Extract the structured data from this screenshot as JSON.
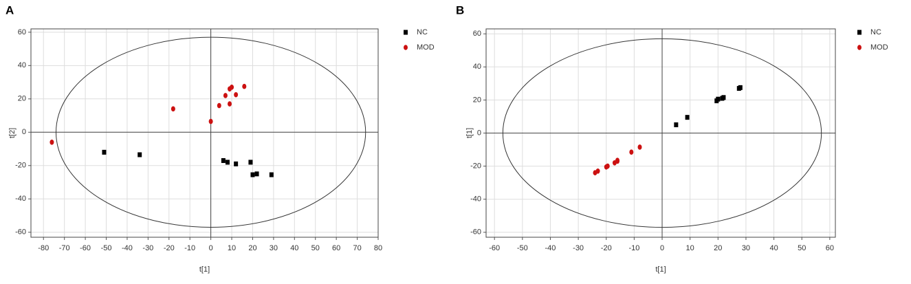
{
  "chart_data": [
    {
      "type": "scatter",
      "panel_label": "A",
      "x_label": "t[1]",
      "y_label": "t[2]",
      "xlim": [
        -86,
        80
      ],
      "ylim": [
        -63,
        62
      ],
      "xticks": [
        -80,
        -70,
        -60,
        -50,
        -40,
        -30,
        -20,
        -10,
        0,
        10,
        20,
        30,
        40,
        50,
        60,
        70,
        80
      ],
      "yticks": [
        -60,
        -40,
        -20,
        0,
        20,
        40,
        60
      ],
      "grid": true,
      "ellipse": {
        "rx": 74,
        "ry": 57
      },
      "series": [
        {
          "name": "NC",
          "color": "#000000",
          "marker": "square",
          "x": [
            -51,
            -34,
            6,
            8,
            12,
            19,
            20,
            22,
            29
          ],
          "y": [
            -12,
            -13.5,
            -17,
            -18,
            -19,
            -18,
            -25.5,
            -25,
            -25.5
          ]
        },
        {
          "name": "MOD",
          "color": "#cc1111",
          "marker": "circle",
          "x": [
            -76,
            -18,
            0,
            4,
            7,
            9,
            9,
            10,
            12,
            16
          ],
          "y": [
            -6,
            14,
            6.5,
            16,
            22,
            17,
            26,
            27,
            22.5,
            27.5
          ]
        }
      ]
    },
    {
      "type": "scatter",
      "panel_label": "B",
      "x_label": "t[1]",
      "y_label": "t[1]",
      "xlim": [
        -63,
        62
      ],
      "ylim": [
        -63,
        63
      ],
      "xticks": [
        -60,
        -50,
        -40,
        -30,
        -20,
        -10,
        0,
        10,
        20,
        30,
        40,
        50,
        60
      ],
      "yticks": [
        -60,
        -40,
        -20,
        0,
        20,
        40,
        60
      ],
      "grid": true,
      "ellipse": {
        "rx": 57,
        "ry": 57
      },
      "series": [
        {
          "name": "NC",
          "color": "#000000",
          "marker": "square",
          "x": [
            5,
            9,
            19.5,
            20,
            21.5,
            22,
            27.5,
            28
          ],
          "y": [
            5,
            9.5,
            19.5,
            20.5,
            21,
            21.5,
            27,
            27.5
          ]
        },
        {
          "name": "MOD",
          "color": "#cc1111",
          "marker": "circle",
          "x": [
            -24,
            -23,
            -20,
            -19.5,
            -17,
            -16,
            -16,
            -11,
            -8
          ],
          "y": [
            -24,
            -23,
            -20.5,
            -20,
            -18,
            -16.5,
            -17,
            -11.5,
            -8.5
          ]
        }
      ]
    }
  ]
}
